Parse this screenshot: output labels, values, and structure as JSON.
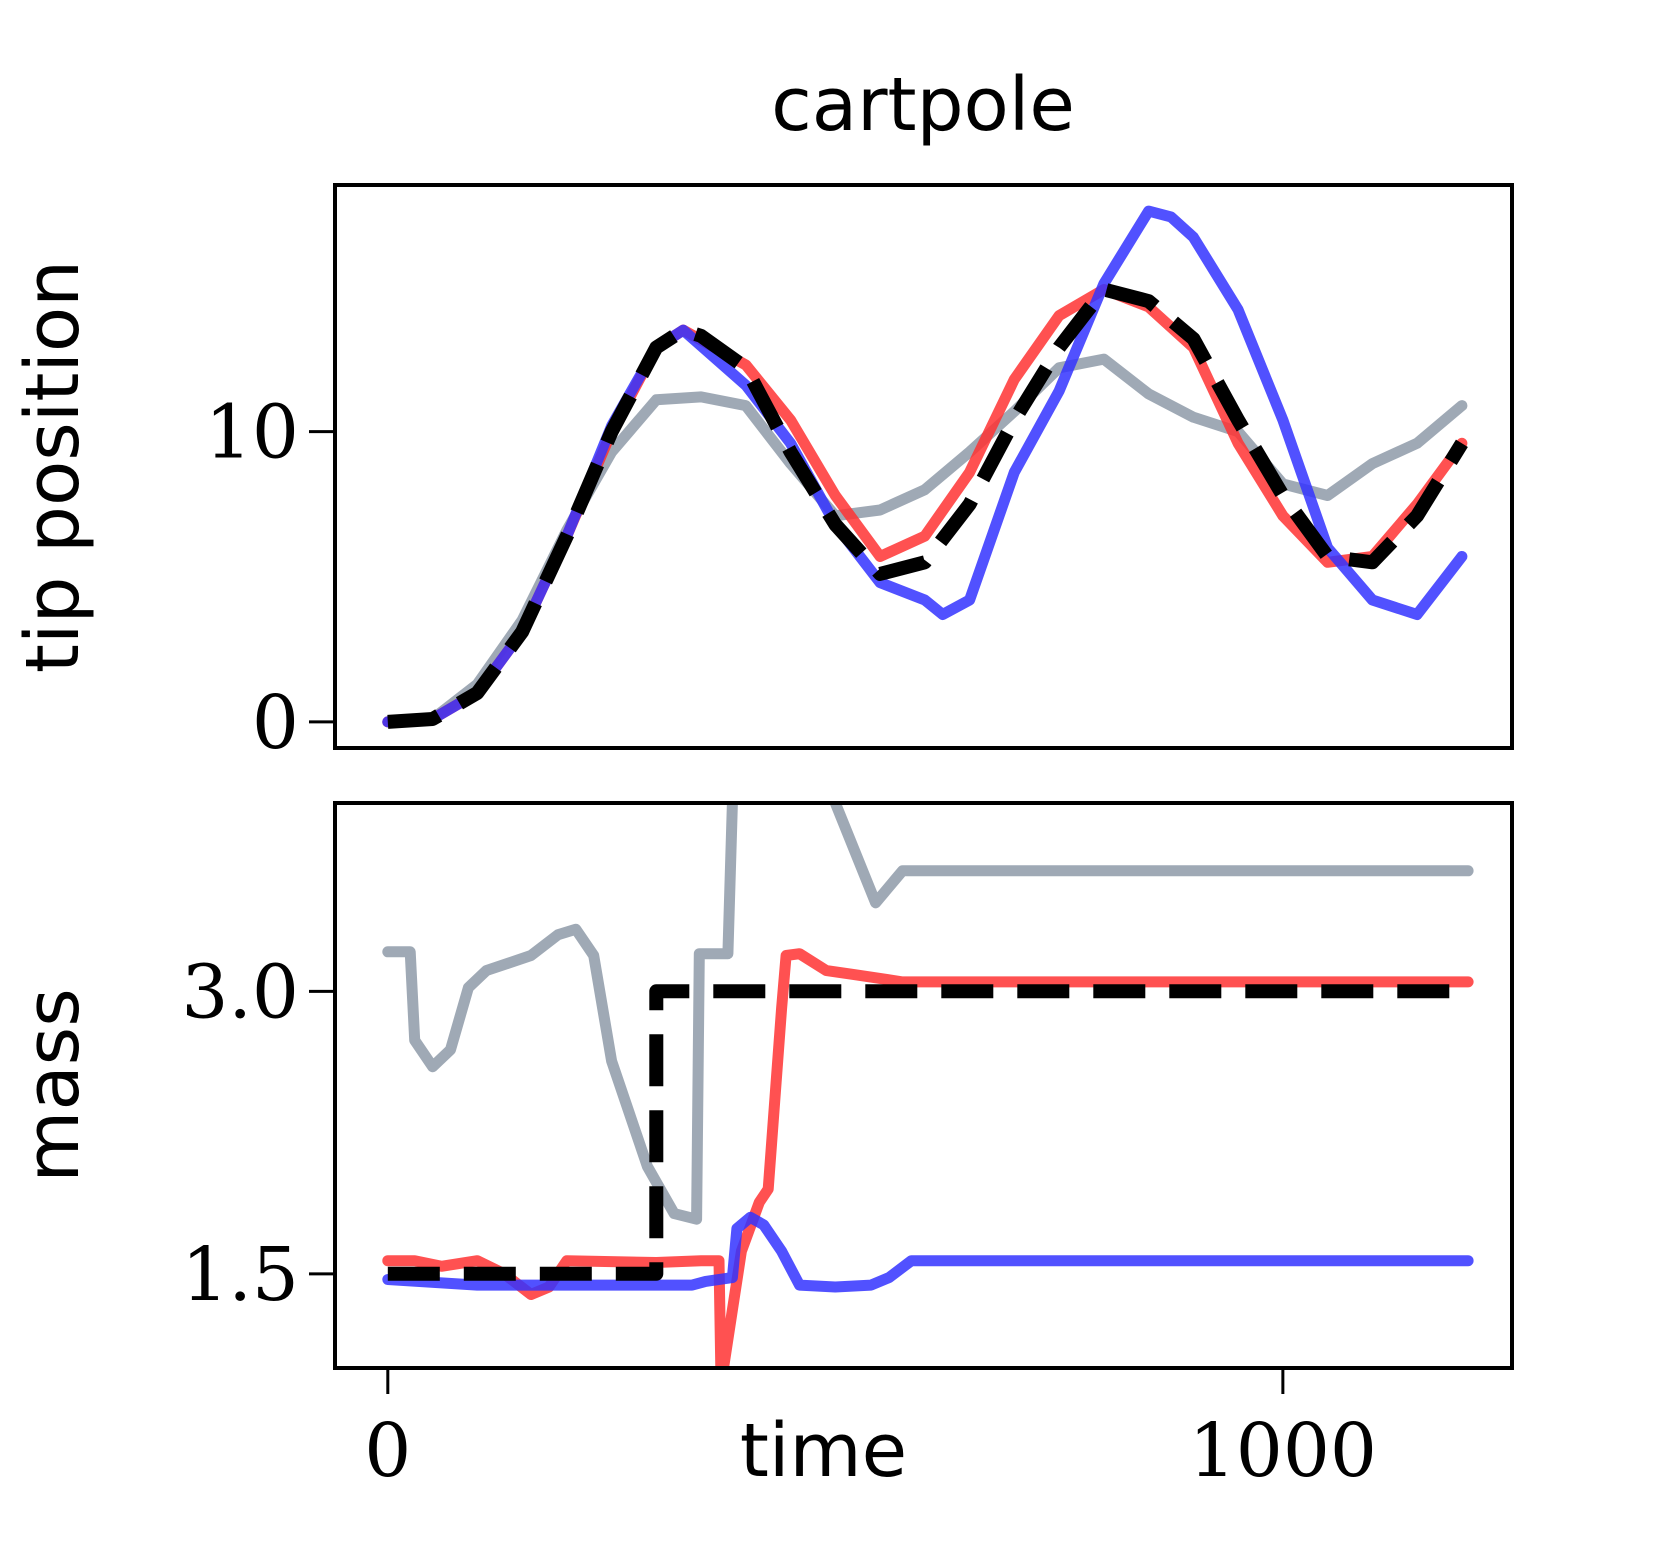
{
  "chart_data": [
    {
      "type": "line",
      "title": "cartpole",
      "ylabel": "tip position",
      "xlim": [
        -59,
        1256
      ],
      "ylim": [
        -0.9,
        18.5
      ],
      "yticks": [
        0,
        10
      ],
      "series": [
        {
          "color": "#8e9aa8",
          "x": [
            0,
            50,
            100,
            150,
            200,
            250,
            300,
            350,
            400,
            450,
            500,
            550,
            600,
            650,
            700,
            750,
            800,
            850,
            900,
            950,
            1000,
            1050,
            1100,
            1150,
            1200
          ],
          "values": [
            0,
            0.1,
            1.3,
            3.5,
            6.6,
            9.3,
            11.1,
            11.2,
            10.9,
            8.9,
            7.1,
            7.3,
            8.0,
            9.3,
            10.7,
            12.2,
            12.5,
            11.3,
            10.5,
            10.0,
            8.2,
            7.8,
            8.9,
            9.6,
            10.9
          ]
        },
        {
          "color": "#ff3333",
          "x": [
            0,
            50,
            100,
            150,
            200,
            250,
            300,
            330,
            400,
            450,
            500,
            550,
            600,
            650,
            700,
            750,
            800,
            850,
            900,
            950,
            1000,
            1050,
            1100,
            1150,
            1200
          ],
          "values": [
            0,
            0.1,
            1.0,
            3.1,
            6.4,
            10.0,
            12.9,
            13.5,
            12.3,
            10.4,
            7.8,
            5.7,
            6.4,
            8.6,
            11.8,
            14.0,
            14.9,
            14.3,
            12.9,
            9.6,
            7.1,
            5.5,
            5.7,
            7.5,
            9.6
          ]
        },
        {
          "color": "#3333ff",
          "x": [
            0,
            50,
            100,
            150,
            200,
            250,
            300,
            330,
            400,
            450,
            500,
            550,
            600,
            620,
            650,
            700,
            750,
            800,
            850,
            875,
            900,
            950,
            1000,
            1050,
            1100,
            1150,
            1200
          ],
          "values": [
            0,
            0.1,
            1.0,
            3.1,
            6.4,
            10.2,
            12.9,
            13.5,
            11.6,
            9.6,
            6.8,
            4.8,
            4.2,
            3.7,
            4.2,
            8.6,
            11.4,
            15.1,
            17.6,
            17.4,
            16.7,
            14.2,
            10.4,
            6.0,
            4.2,
            3.7,
            5.7
          ]
        },
        {
          "color": "#000000",
          "dashed": true,
          "x": [
            0,
            50,
            100,
            150,
            200,
            250,
            300,
            330,
            350,
            400,
            450,
            500,
            550,
            600,
            650,
            700,
            750,
            800,
            850,
            900,
            950,
            1000,
            1050,
            1100,
            1150,
            1200
          ],
          "values": [
            0,
            0.1,
            1.0,
            3.1,
            6.4,
            10.0,
            12.9,
            13.5,
            13.3,
            12.2,
            9.3,
            6.8,
            5.1,
            5.5,
            7.5,
            10.4,
            12.9,
            14.9,
            14.5,
            13.2,
            10.4,
            7.8,
            5.7,
            5.5,
            7.1,
            9.6
          ]
        }
      ]
    },
    {
      "type": "line",
      "ylabel": "mass",
      "xlabel": "time",
      "xlim": [
        -59,
        1256
      ],
      "ylim": [
        1.0,
        4.0
      ],
      "yticks": [
        1.5,
        {
          "value": 3,
          "label": "3.0"
        }
      ],
      "xticks": [
        0,
        1000
      ],
      "series": [
        {
          "color": "#8e9aa8",
          "x": [
            0,
            25,
            30,
            50,
            70,
            90,
            110,
            160,
            190,
            210,
            230,
            250,
            290,
            320,
            345,
            348,
            380,
            385,
            440,
            500,
            545,
            575,
            1207
          ],
          "values": [
            3.21,
            3.21,
            2.74,
            2.6,
            2.69,
            3.02,
            3.11,
            3.19,
            3.3,
            3.33,
            3.19,
            2.63,
            2.07,
            1.82,
            1.79,
            3.2,
            3.2,
            4.0,
            null,
            4.0,
            3.47,
            3.64,
            3.64
          ]
        },
        {
          "color": "#ff3333",
          "x": [
            0,
            30,
            60,
            100,
            130,
            160,
            180,
            200,
            300,
            350,
            370,
            372,
            375,
            395,
            415,
            425,
            440,
            445,
            460,
            490,
            520,
            575,
            1207
          ],
          "values": [
            1.57,
            1.57,
            1.54,
            1.57,
            1.5,
            1.39,
            1.43,
            1.57,
            1.56,
            1.57,
            1.57,
            1.0,
            1.0,
            1.62,
            1.88,
            1.95,
            2.91,
            3.19,
            3.2,
            3.11,
            3.09,
            3.05,
            3.05
          ]
        },
        {
          "color": "#3333ff",
          "x": [
            0,
            100,
            200,
            340,
            355,
            385,
            390,
            405,
            420,
            440,
            460,
            500,
            540,
            560,
            585,
            1207
          ],
          "values": [
            1.47,
            1.44,
            1.44,
            1.44,
            1.46,
            1.48,
            1.74,
            1.8,
            1.76,
            1.62,
            1.44,
            1.43,
            1.44,
            1.48,
            1.57,
            1.57
          ]
        },
        {
          "color": "#000000",
          "dashed": true,
          "x": [
            0,
            300,
            300,
            1207
          ],
          "values": [
            1.5,
            1.5,
            3.0,
            3.0
          ]
        }
      ]
    }
  ]
}
